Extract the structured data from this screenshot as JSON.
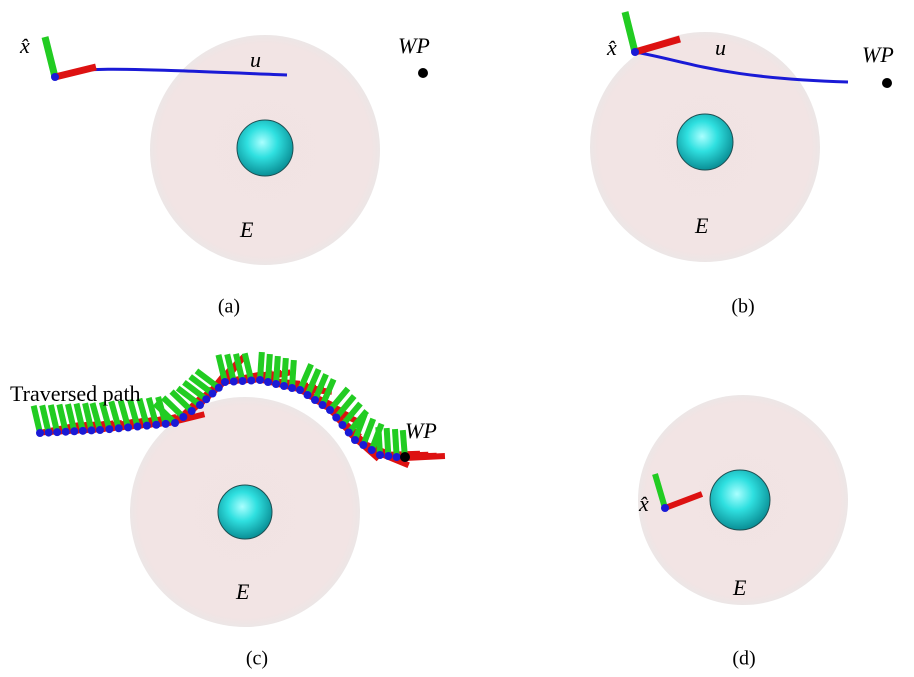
{
  "panels": [
    {
      "caption": "(a)",
      "robot_label": "x̂",
      "control_label": "u",
      "waypoint_label": "WP",
      "region_label": "E"
    },
    {
      "caption": "(b)",
      "robot_label": "x̂",
      "control_label": "u",
      "waypoint_label": "WP",
      "region_label": "E"
    },
    {
      "caption": "(c)",
      "path_label": "Traversed path",
      "waypoint_label": "WP",
      "region_label": "E"
    },
    {
      "caption": "(d)",
      "robot_label": "x̂",
      "region_label": "E"
    }
  ]
}
